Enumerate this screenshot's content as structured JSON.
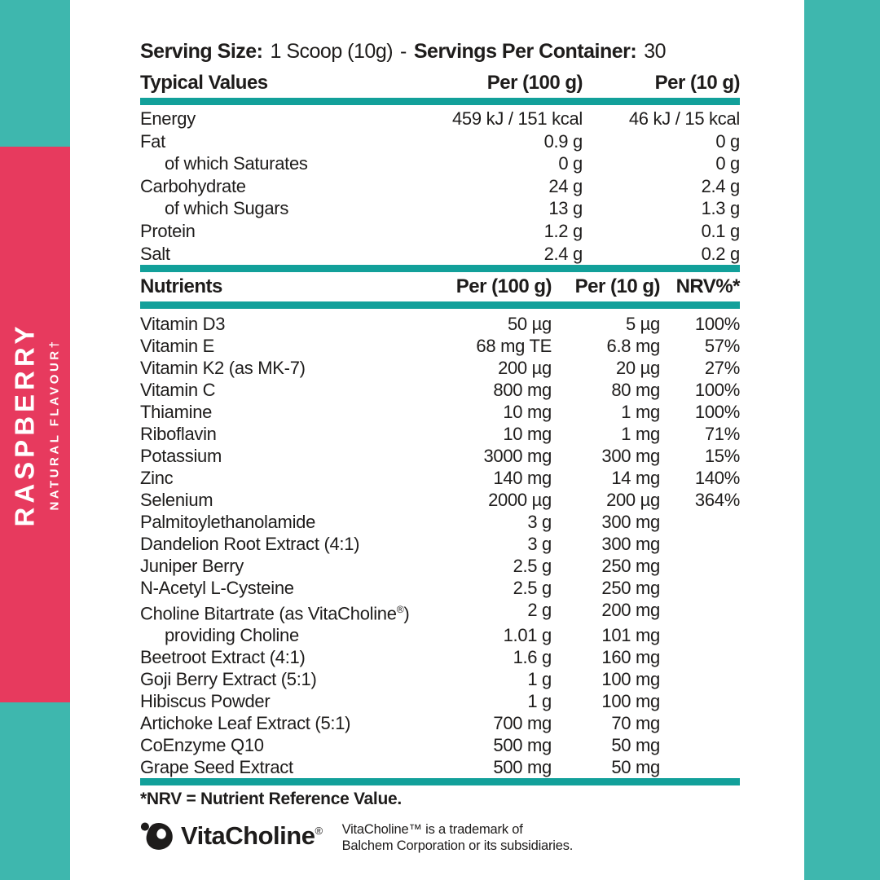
{
  "colors": {
    "teal_band": "#3eb7ae",
    "teal_rule": "#12a09a",
    "pink": "#e73a5e",
    "text": "#1e1c1b",
    "white": "#ffffff"
  },
  "side_band": {
    "flavor": "RASPBERRY",
    "subtitle": "NATURAL FLAVOUR†"
  },
  "serving": {
    "size_label": "Serving Size:",
    "size_value": "1 Scoop (10g)",
    "separator": "-",
    "container_label": "Servings Per Container:",
    "container_value": "30"
  },
  "typical_values": {
    "header": {
      "col1": "Typical Values",
      "col2": "Per (100 g)",
      "col3": "Per (10 g)"
    },
    "rows": [
      {
        "label": "Energy",
        "per100": "459 kJ / 151 kcal",
        "per10": "46 kJ / 15 kcal",
        "indent": false
      },
      {
        "label": "Fat",
        "per100": "0.9 g",
        "per10": "0 g",
        "indent": false
      },
      {
        "label": "of which Saturates",
        "per100": "0 g",
        "per10": "0 g",
        "indent": true
      },
      {
        "label": "Carbohydrate",
        "per100": "24 g",
        "per10": "2.4 g",
        "indent": false
      },
      {
        "label": "of which Sugars",
        "per100": "13 g",
        "per10": "1.3 g",
        "indent": true
      },
      {
        "label": "Protein",
        "per100": "1.2 g",
        "per10": "0.1 g",
        "indent": false
      },
      {
        "label": "Salt",
        "per100": "2.4 g",
        "per10": "0.2 g",
        "indent": false
      }
    ]
  },
  "nutrients": {
    "header": {
      "col1": "Nutrients",
      "col2": "Per (100 g)",
      "col3": "Per (10 g)",
      "col4": "NRV%*"
    },
    "rows": [
      {
        "label": "Vitamin D3",
        "per100": "50 µg",
        "per10": "5 µg",
        "nrv": "100%",
        "indent": false
      },
      {
        "label": "Vitamin E",
        "per100": "68 mg TE",
        "per10": "6.8 mg",
        "nrv": "57%",
        "indent": false
      },
      {
        "label": "Vitamin K2 (as MK-7)",
        "per100": "200 µg",
        "per10": "20 µg",
        "nrv": "27%",
        "indent": false
      },
      {
        "label": "Vitamin C",
        "per100": "800 mg",
        "per10": "80 mg",
        "nrv": "100%",
        "indent": false
      },
      {
        "label": "Thiamine",
        "per100": "10 mg",
        "per10": "1 mg",
        "nrv": "100%",
        "indent": false
      },
      {
        "label": "Riboflavin",
        "per100": "10 mg",
        "per10": "1 mg",
        "nrv": "71%",
        "indent": false
      },
      {
        "label": "Potassium",
        "per100": "3000 mg",
        "per10": "300 mg",
        "nrv": "15%",
        "indent": false
      },
      {
        "label": "Zinc",
        "per100": "140 mg",
        "per10": "14 mg",
        "nrv": "140%",
        "indent": false
      },
      {
        "label": "Selenium",
        "per100": "2000 µg",
        "per10": "200 µg",
        "nrv": "364%",
        "indent": false
      },
      {
        "label": "Palmitoylethanolamide",
        "per100": "3 g",
        "per10": "300 mg",
        "nrv": "",
        "indent": false
      },
      {
        "label": "Dandelion Root Extract (4:1)",
        "per100": "3 g",
        "per10": "300 mg",
        "nrv": "",
        "indent": false
      },
      {
        "label": "Juniper Berry",
        "per100": "2.5 g",
        "per10": "250 mg",
        "nrv": "",
        "indent": false
      },
      {
        "label": "N-Acetyl L-Cysteine",
        "per100": "2.5 g",
        "per10": "250 mg",
        "nrv": "",
        "indent": false
      },
      {
        "label": "Choline Bitartrate (as VitaCholine®)",
        "per100": "2 g",
        "per10": "200 mg",
        "nrv": "",
        "indent": false
      },
      {
        "label": "providing Choline",
        "per100": "1.01 g",
        "per10": "101 mg",
        "nrv": "",
        "indent": true
      },
      {
        "label": "Beetroot Extract (4:1)",
        "per100": "1.6 g",
        "per10": "160 mg",
        "nrv": "",
        "indent": false
      },
      {
        "label": "Goji Berry Extract (5:1)",
        "per100": "1 g",
        "per10": "100 mg",
        "nrv": "",
        "indent": false
      },
      {
        "label": "Hibiscus Powder",
        "per100": "1 g",
        "per10": "100 mg",
        "nrv": "",
        "indent": false
      },
      {
        "label": "Artichoke Leaf Extract (5:1)",
        "per100": "700 mg",
        "per10": "70 mg",
        "nrv": "",
        "indent": false
      },
      {
        "label": "CoEnzyme Q10",
        "per100": "500 mg",
        "per10": "50 mg",
        "nrv": "",
        "indent": false
      },
      {
        "label": "Grape Seed Extract",
        "per100": "500 mg",
        "per10": "50 mg",
        "nrv": "",
        "indent": false
      }
    ]
  },
  "footer": {
    "nrv_note": "*NRV = Nutrient Reference Value.",
    "logo_text": "VitaCholine",
    "logo_reg": "®",
    "trademark_line1": "VitaCholine™ is a trademark of",
    "trademark_line2": "Balchem Corporation or its subsidiaries."
  }
}
